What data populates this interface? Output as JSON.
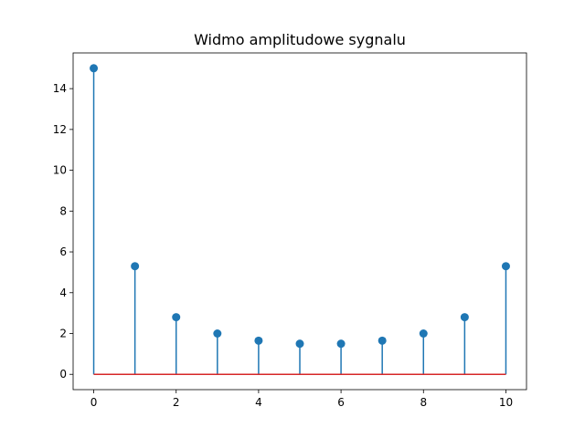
{
  "chart_data": {
    "type": "stem",
    "title": "Widmo amplitudowe sygnalu",
    "xlabel": "",
    "ylabel": "",
    "xlim": [
      -0.5,
      10.5
    ],
    "ylim": [
      -0.75,
      15.75
    ],
    "xticks": [
      0,
      2,
      4,
      6,
      8,
      10
    ],
    "yticks": [
      0,
      2,
      4,
      6,
      8,
      10,
      12,
      14
    ],
    "x": [
      0,
      1,
      2,
      3,
      4,
      5,
      6,
      7,
      8,
      9,
      10
    ],
    "values": [
      15.0,
      5.3,
      2.8,
      2.0,
      1.65,
      1.5,
      1.5,
      1.65,
      2.0,
      2.8,
      5.3
    ],
    "baseline": 0,
    "grid": false,
    "colors": {
      "stem": "#1f77b4",
      "baseline": "#d62728"
    }
  }
}
